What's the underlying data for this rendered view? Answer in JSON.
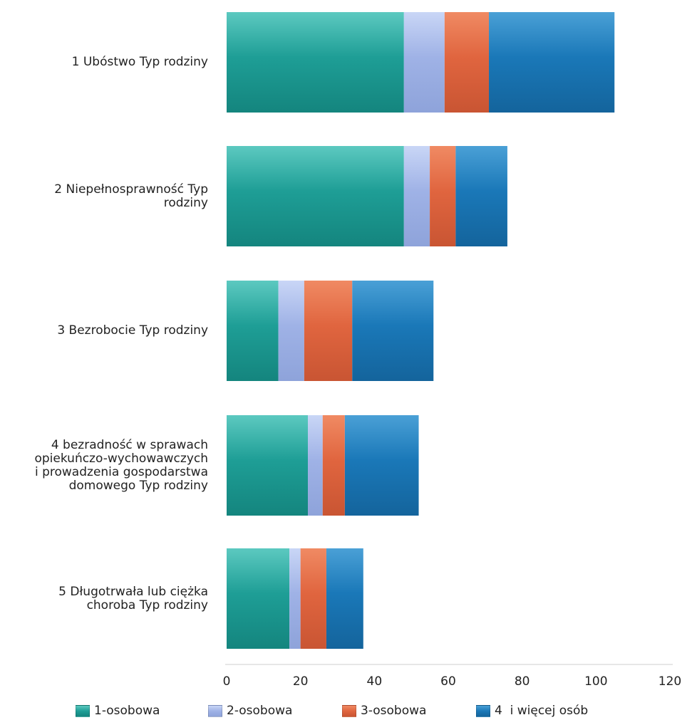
{
  "chart_data": {
    "type": "bar",
    "orientation": "horizontal",
    "stacked": true,
    "categories": [
      "1 Ubóstwo Typ rodziny",
      "2 Niepełnosprawność Typ\nrodziny",
      "3 Bezrobocie Typ rodziny",
      "4 bezradność w sprawach\nopiekuńczo-wychowawczych\ni prowadzenia gospodarstwa\ndomowego Typ rodziny",
      "5 Długotrwała lub ciężka\nchoroba Typ rodziny"
    ],
    "series": [
      {
        "name": "1-osobowa",
        "color": "#1e9e96",
        "values": [
          48,
          48,
          14,
          22,
          17
        ]
      },
      {
        "name": "2-osobowa",
        "color": "#9fb2e6",
        "values": [
          11,
          7,
          7,
          4,
          3
        ]
      },
      {
        "name": "3-osobowa",
        "color": "#e0653f",
        "values": [
          12,
          7,
          13,
          6,
          7
        ]
      },
      {
        "name": "4  i więcej osób",
        "color": "#1a78b8",
        "values": [
          34,
          14,
          22,
          20,
          10
        ]
      }
    ],
    "x_ticks": [
      "0",
      "20",
      "40",
      "60",
      "80",
      "100",
      "120"
    ],
    "xlim": [
      0,
      120
    ],
    "legend_position": "bottom",
    "grid": false
  }
}
